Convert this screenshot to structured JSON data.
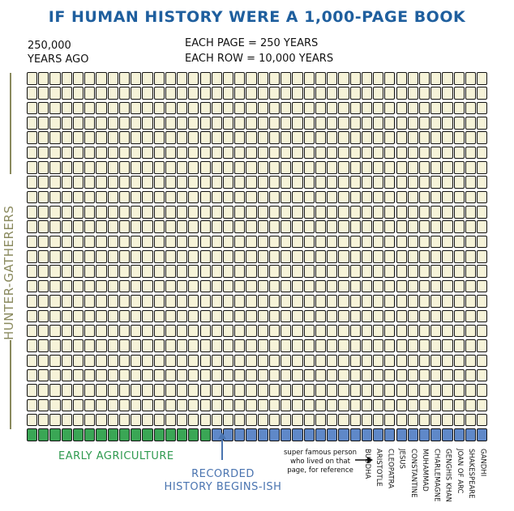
{
  "title": "IF HUMAN HISTORY WERE A 1,000-PAGE BOOK",
  "start_label": [
    "250,000",
    "YEARS AGO"
  ],
  "scale_lines": [
    "EACH PAGE = 250 YEARS",
    "EACH ROW = 10,000 YEARS"
  ],
  "side_label": "HUNTER-GATHERERS",
  "agriculture_label": "EARLY AGRICULTURE",
  "recorded_label": [
    "RECORDED",
    "HISTORY BEGINS-ISH"
  ],
  "reference_note": [
    "super famous person",
    "who lived on that",
    "page, for reference"
  ],
  "grid": {
    "rows": 25,
    "pages_per_row": 40,
    "total_pages": 1000,
    "agriculture_pages": 16,
    "recorded_pages": 24
  },
  "colors": {
    "title": "#1f5f9e",
    "hunter_gatherer": "#f6f3d8",
    "agriculture": "#3aa655",
    "recorded": "#5f88c8",
    "side_label": "#8a8a5e"
  },
  "people": [
    {
      "name": "BUDDHA",
      "page": 990
    },
    {
      "name": "ARISTOTLE",
      "page": 991
    },
    {
      "name": "CLEOPATRA",
      "page": 992
    },
    {
      "name": "JESUS",
      "page": 993
    },
    {
      "name": "CONSTANTINE",
      "page": 994
    },
    {
      "name": "MUHAMMAD",
      "page": 995
    },
    {
      "name": "CHARLEMAGNE",
      "page": 996
    },
    {
      "name": "GENGHIS KHAN",
      "page": 997
    },
    {
      "name": "JOAN OF ARC",
      "page": 998
    },
    {
      "name": "SHAKESPEARE",
      "page": 999
    },
    {
      "name": "GANDHI",
      "page": 1000
    }
  ]
}
